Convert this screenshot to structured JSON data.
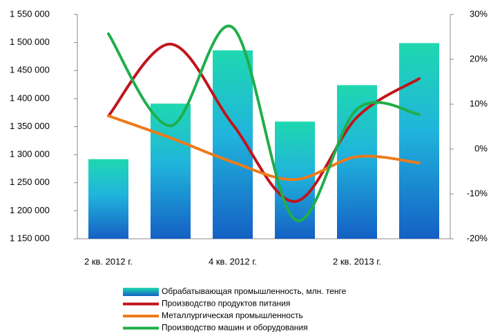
{
  "chart_data": {
    "type": "bar_line",
    "categories": [
      "2 кв. 2012 г.",
      null,
      "4 кв. 2012 г.",
      null,
      "2 кв. 2013 г.",
      null
    ],
    "series": [
      {
        "name": "Обрабатывающая промышленность, млн. тенге",
        "type": "bar",
        "color": "#1fa8d8",
        "values": [
          1292000,
          1391000,
          1486000,
          1359000,
          1424000,
          1499000
        ]
      },
      {
        "name": "Производство продуктов питания",
        "type": "line",
        "axis": "y2",
        "color": "#c0141c",
        "values": [
          7.4,
          23.4,
          5.5,
          -11.7,
          7.1,
          15.7
        ]
      },
      {
        "name": "Металлургическая промышленность",
        "type": "line",
        "axis": "y2",
        "color": "#ee7a1a",
        "values": [
          7.4,
          2.5,
          -2.9,
          -6.8,
          -1.7,
          -3.1
        ]
      },
      {
        "name": "Производство машин и оборудования",
        "type": "line",
        "axis": "y2",
        "color": "#1fae4b",
        "values": [
          25.7,
          5.2,
          27.1,
          -15.7,
          8.9,
          7.7
        ]
      }
    ],
    "ylim": [
      1150000,
      1550000
    ],
    "yticks": [
      {
        "value": 1150000,
        "label": "1 150 000"
      },
      {
        "value": 1200000,
        "label": "1 200 000"
      },
      {
        "value": 1250000,
        "label": "1 250 000"
      },
      {
        "value": 1300000,
        "label": "1 300 000"
      },
      {
        "value": 1350000,
        "label": "1 350 000"
      },
      {
        "value": 1400000,
        "label": "1 400 000"
      },
      {
        "value": 1450000,
        "label": "1 450 000"
      },
      {
        "value": 1500000,
        "label": "1 500 000"
      },
      {
        "value": 1550000,
        "label": "1 550 000"
      }
    ],
    "y2lim": [
      -20,
      30
    ],
    "y2ticks": [
      {
        "value": -20,
        "label": "-20%"
      },
      {
        "value": -10,
        "label": "-10%"
      },
      {
        "value": 0,
        "label": "0%"
      },
      {
        "value": 10,
        "label": "10%"
      },
      {
        "value": 20,
        "label": "20%"
      },
      {
        "value": 30,
        "label": "30%"
      }
    ],
    "legend": "bottom"
  }
}
